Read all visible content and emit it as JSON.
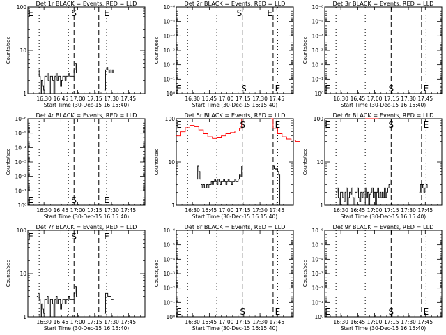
{
  "figure": {
    "x_axis_label": "Start Time (30-Dec-15 16:15:40)",
    "y_axis_label": "Counts/sec",
    "x_ticks": [
      "16:30",
      "16:45",
      "17:00",
      "17:15",
      "17:30",
      "17:45"
    ],
    "x_tick_minutes": [
      14.33,
      29.33,
      44.33,
      59.33,
      74.33,
      89.33
    ],
    "x_range_minutes": [
      0,
      104
    ],
    "colors": {
      "events": "#000000",
      "lld": "#ff0000",
      "axes": "#000000"
    }
  },
  "chart_data": [
    {
      "type": "line",
      "title": "Det 1r BLACK = Events, RED = LLD",
      "ylabel": "Counts/sec",
      "xlabel": "Start Time (30-Dec-15 16:15:40)",
      "yscale": "log",
      "ylim": [
        1,
        100
      ],
      "y_ticks": [
        {
          "v": 1,
          "t": "1"
        },
        {
          "v": 10,
          "t": "10"
        },
        {
          "v": 100,
          "t": "100"
        }
      ],
      "dotted_lines_minutes": [
        10,
        36,
        70
      ],
      "dashed_lines_minutes": [
        41,
        63
      ],
      "markers": [
        {
          "text": "E",
          "x": 2.5,
          "y": 100
        },
        {
          "text": "S",
          "x": 41,
          "y": 100
        },
        {
          "text": "E",
          "x": 70,
          "y": 100
        }
      ],
      "series": [
        {
          "color": "#000000",
          "x": [
            8,
            9,
            10,
            11,
            12,
            13,
            14,
            15,
            16,
            17,
            18,
            19,
            20,
            21,
            22,
            23,
            24,
            25,
            26,
            27,
            28,
            29,
            30,
            31,
            32,
            33,
            34,
            35,
            36,
            37,
            38,
            39,
            40,
            41,
            42,
            43,
            44
          ],
          "y": [
            3,
            3.5,
            2.5,
            1,
            2,
            1.5,
            1.2,
            2.5,
            2.5,
            3,
            2,
            1,
            2.5,
            2.5,
            2,
            1,
            2.5,
            3,
            2,
            2.5,
            2.5,
            1.5,
            2,
            2.5,
            2.5,
            2,
            2.5,
            2.5,
            3,
            2.5,
            2.5,
            2.5,
            2.5,
            3.5,
            5,
            3,
            3
          ]
        },
        {
          "color": "#000000",
          "x": [
            68,
            69,
            70,
            71,
            72,
            73,
            74,
            75,
            76
          ],
          "y": [
            1.2,
            3.5,
            4,
            3.5,
            3,
            3.5,
            3,
            3.5,
            3
          ]
        }
      ]
    },
    {
      "type": "line",
      "title": "Det 2r BLACK = Events, RED = LLD",
      "ylabel": "Counts/sec",
      "xlabel": "Start Time (30-Dec-15 16:15:40)",
      "yscale": "log",
      "ylim": [
        1,
        1e-06
      ],
      "y_ticks": [
        {
          "v": 1,
          "t": "10⁰"
        },
        {
          "v": 0.1,
          "t": "10⁻¹"
        },
        {
          "v": 0.01,
          "t": "10⁻²"
        },
        {
          "v": 0.001,
          "t": "10⁻³"
        },
        {
          "v": 0.0001,
          "t": "10⁻⁴"
        },
        {
          "v": 1e-05,
          "t": "10⁻⁵"
        },
        {
          "v": 1e-06,
          "t": "10⁻⁶"
        }
      ],
      "dotted_lines_minutes": [
        10,
        36,
        90
      ],
      "dashed_lines_minutes": [
        59,
        86
      ],
      "markers": [
        {
          "text": "S",
          "x": 56,
          "y": 1e-06
        },
        {
          "text": "E",
          "x": 83,
          "y": 1e-06
        }
      ],
      "bottom_markers": [
        {
          "text": "E",
          "x": 2.5
        },
        {
          "text": "S",
          "x": 60
        },
        {
          "text": "E",
          "x": 90
        }
      ],
      "series": []
    },
    {
      "type": "line",
      "title": "Det 3r BLACK = Events, RED = LLD",
      "ylabel": "Counts/sec",
      "xlabel": "Start Time (30-Dec-15 16:15:40)",
      "yscale": "log",
      "ylim": [
        1,
        1e-06
      ],
      "y_ticks": [
        {
          "v": 1,
          "t": "10⁰"
        },
        {
          "v": 0.1,
          "t": "10⁻¹"
        },
        {
          "v": 0.01,
          "t": "10⁻²"
        },
        {
          "v": 0.001,
          "t": "10⁻³"
        },
        {
          "v": 0.0001,
          "t": "10⁻⁴"
        },
        {
          "v": 1e-05,
          "t": "10⁻⁵"
        },
        {
          "v": 1e-06,
          "t": "10⁻⁶"
        }
      ],
      "dotted_lines_minutes": [
        10,
        36,
        90
      ],
      "dashed_lines_minutes": [
        59,
        86
      ],
      "markers": [],
      "bottom_markers": [
        {
          "text": "E",
          "x": 2.5
        },
        {
          "text": "S",
          "x": 59
        },
        {
          "text": "E",
          "x": 90
        }
      ],
      "series": []
    },
    {
      "type": "line",
      "title": "Det 4r BLACK = Events, RED = LLD",
      "ylabel": "Counts/sec",
      "xlabel": "Start Time (30-Dec-15 16:15:40)",
      "yscale": "log",
      "ylim": [
        1,
        1e-06
      ],
      "y_ticks": [
        {
          "v": 1,
          "t": "10⁰"
        },
        {
          "v": 0.1,
          "t": "10⁻¹"
        },
        {
          "v": 0.01,
          "t": "10⁻²"
        },
        {
          "v": 0.001,
          "t": "10⁻³"
        },
        {
          "v": 0.0001,
          "t": "10⁻⁴"
        },
        {
          "v": 1e-05,
          "t": "10⁻⁵"
        },
        {
          "v": 1e-06,
          "t": "10⁻⁶"
        }
      ],
      "dotted_lines_minutes": [
        10,
        36,
        70
      ],
      "dashed_lines_minutes": [
        41,
        63
      ],
      "markers": [],
      "bottom_markers": [
        {
          "text": "E",
          "x": 2.5
        },
        {
          "text": "S",
          "x": 41
        },
        {
          "text": "E",
          "x": 70
        }
      ],
      "series": []
    },
    {
      "type": "line",
      "title": "Det 5r BLACK = Events, RED = LLD",
      "ylabel": "Counts/sec",
      "xlabel": "Start Time (30-Dec-15 16:15:40)",
      "yscale": "log",
      "ylim": [
        1,
        100
      ],
      "y_ticks": [
        {
          "v": 1,
          "t": "1"
        },
        {
          "v": 10,
          "t": "10"
        },
        {
          "v": 100,
          "t": "100"
        }
      ],
      "dotted_lines_minutes": [
        10,
        36,
        90
      ],
      "dashed_lines_minutes": [
        59,
        86
      ],
      "markers": [
        {
          "text": "E",
          "x": 2.5,
          "y": 100
        },
        {
          "text": "S",
          "x": 59,
          "y": 100
        },
        {
          "text": "E",
          "x": 90,
          "y": 100
        }
      ],
      "series": [
        {
          "color": "#ff0000",
          "x": [
            0,
            4,
            8,
            12,
            16,
            20,
            24,
            28,
            32,
            36,
            40,
            44,
            48,
            52,
            56,
            58
          ],
          "y": [
            40,
            50,
            62,
            70,
            65,
            55,
            45,
            38,
            35,
            36,
            40,
            45,
            48,
            52,
            60,
            100
          ]
        },
        {
          "color": "#ff0000",
          "x": [
            84,
            86,
            90,
            94,
            98,
            102,
            106,
            110
          ],
          "y": [
            100,
            60,
            45,
            38,
            34,
            32,
            30,
            30
          ]
        },
        {
          "color": "#000000",
          "x": [
            18,
            19,
            20,
            21,
            22,
            23,
            24,
            25,
            26,
            27,
            28,
            29,
            30,
            31,
            32,
            33,
            34,
            35,
            36,
            37,
            38,
            39,
            40,
            41,
            42,
            43,
            44,
            45,
            46,
            47,
            48,
            49,
            50,
            51,
            52,
            53,
            54,
            55,
            56,
            57,
            58
          ],
          "y": [
            4,
            8,
            6,
            4,
            3,
            2.5,
            3,
            2.5,
            2.5,
            3,
            2.5,
            3,
            3,
            3.5,
            3,
            3.5,
            4,
            3.5,
            3,
            4,
            3.5,
            3,
            3.5,
            3.5,
            4,
            3.5,
            3,
            3.5,
            4,
            3.5,
            3.5,
            3,
            3.5,
            3.5,
            4,
            3.5,
            3.5,
            4,
            5,
            4.5,
            8
          ]
        },
        {
          "color": "#000000",
          "x": [
            86,
            87,
            88,
            89,
            90,
            91,
            92,
            93,
            94
          ],
          "y": [
            8,
            7,
            6.5,
            7,
            6,
            5,
            1,
            1,
            1
          ]
        }
      ]
    },
    {
      "type": "line",
      "title": "Det 6r BLACK = Events, RED = LLD",
      "ylabel": "Counts/sec",
      "xlabel": "Start Time (30-Dec-15 16:15:40)",
      "yscale": "log",
      "ylim": [
        1,
        100
      ],
      "y_ticks": [
        {
          "v": 1,
          "t": "1"
        },
        {
          "v": 10,
          "t": "10"
        },
        {
          "v": 100,
          "t": "100"
        }
      ],
      "dotted_lines_minutes": [
        10,
        36,
        90
      ],
      "dashed_lines_minutes": [
        59,
        86
      ],
      "markers": [
        {
          "text": "E",
          "x": 2.5,
          "y": 100
        },
        {
          "text": "S",
          "x": 59,
          "y": 100
        },
        {
          "text": "E",
          "x": 90,
          "y": 100
        }
      ],
      "series": [
        {
          "color": "#ff0000",
          "x": [
            36,
            40,
            44,
            48
          ],
          "y": [
            100,
            100,
            100,
            100
          ]
        },
        {
          "color": "#000000",
          "x": [
            10,
            11,
            12,
            13,
            14,
            15,
            16,
            17,
            18,
            19,
            20,
            21,
            22,
            23,
            24,
            25,
            26,
            27,
            28,
            29,
            30,
            31,
            32,
            33,
            34,
            35,
            36,
            37,
            38,
            39,
            40,
            41,
            42,
            43,
            44,
            45,
            46,
            47,
            48,
            49,
            50,
            51,
            52,
            53,
            54,
            55,
            56,
            57,
            58
          ],
          "y": [
            2,
            2.5,
            1.5,
            1,
            2,
            2,
            1.5,
            1.2,
            2,
            2.5,
            1,
            1.5,
            2,
            1.8,
            2.5,
            1.5,
            1,
            2,
            2,
            2.5,
            1.5,
            1.2,
            2,
            1.5,
            2,
            1,
            2.5,
            1.5,
            2,
            1,
            1.8,
            2,
            2.5,
            1.5,
            2,
            1,
            2,
            2.5,
            1.5,
            2,
            1.5,
            2,
            1.5,
            2.5,
            1.5,
            2,
            2.5,
            3,
            4
          ]
        },
        {
          "color": "#000000",
          "x": [
            84,
            85,
            86,
            87,
            88,
            89,
            90,
            91
          ],
          "y": [
            2,
            3,
            2.5,
            3,
            2,
            2.5,
            3,
            2.5
          ]
        }
      ]
    },
    {
      "type": "line",
      "title": "Det 7r BLACK = Events, RED = LLD",
      "ylabel": "Counts/sec",
      "xlabel": "Start Time (30-Dec-15 16:15:40)",
      "yscale": "log",
      "ylim": [
        1,
        100
      ],
      "y_ticks": [
        {
          "v": 1,
          "t": "1"
        },
        {
          "v": 10,
          "t": "10"
        },
        {
          "v": 100,
          "t": "100"
        }
      ],
      "dotted_lines_minutes": [
        10,
        36,
        70
      ],
      "dashed_lines_minutes": [
        41,
        63
      ],
      "markers": [
        {
          "text": "E",
          "x": 2.5,
          "y": 100
        },
        {
          "text": "S",
          "x": 41,
          "y": 100
        },
        {
          "text": "E",
          "x": 70,
          "y": 100
        }
      ],
      "series": [
        {
          "color": "#000000",
          "x": [
            8,
            9,
            10,
            11,
            12,
            13,
            14,
            15,
            16,
            17,
            18,
            19,
            20,
            21,
            22,
            23,
            24,
            25,
            26,
            27,
            28,
            29,
            30,
            31,
            32,
            33,
            34,
            35,
            36,
            37,
            38,
            39,
            40,
            41,
            42,
            43,
            44
          ],
          "y": [
            3,
            3.5,
            2.5,
            1,
            2,
            1.5,
            1.2,
            2.5,
            2.5,
            3,
            2,
            1,
            2.5,
            2.5,
            2,
            1,
            2.5,
            3,
            2,
            2.5,
            2.5,
            1.5,
            2,
            2.5,
            2.5,
            2,
            2.5,
            2.5,
            3,
            2.5,
            2.5,
            2.5,
            2.5,
            3.5,
            5,
            3,
            3
          ]
        },
        {
          "color": "#000000",
          "x": [
            68,
            69,
            70,
            71,
            72,
            73,
            74,
            75,
            76
          ],
          "y": [
            1.2,
            3.5,
            3.5,
            3,
            3,
            3,
            2.5,
            2.5,
            2.5
          ]
        }
      ]
    },
    {
      "type": "line",
      "title": "Det 8r BLACK = Events, RED = LLD",
      "ylabel": "Counts/sec",
      "xlabel": "Start Time (30-Dec-15 16:15:40)",
      "yscale": "log",
      "ylim": [
        1,
        1e-06
      ],
      "y_ticks": [
        {
          "v": 1,
          "t": "10⁰"
        },
        {
          "v": 0.1,
          "t": "10⁻¹"
        },
        {
          "v": 0.01,
          "t": "10⁻²"
        },
        {
          "v": 0.001,
          "t": "10⁻³"
        },
        {
          "v": 0.0001,
          "t": "10⁻⁴"
        },
        {
          "v": 1e-05,
          "t": "10⁻⁵"
        },
        {
          "v": 1e-06,
          "t": "10⁻⁶"
        }
      ],
      "dotted_lines_minutes": [
        10,
        36,
        90
      ],
      "dashed_lines_minutes": [
        59,
        86
      ],
      "markers": [],
      "bottom_markers": [
        {
          "text": "E",
          "x": 2.5
        },
        {
          "text": "S",
          "x": 59
        },
        {
          "text": "E",
          "x": 90
        }
      ],
      "series": []
    },
    {
      "type": "line",
      "title": "Det 9r BLACK = Events, RED = LLD",
      "ylabel": "Counts/sec",
      "xlabel": "Start Time (30-Dec-15 16:15:40)",
      "yscale": "log",
      "ylim": [
        1,
        1e-06
      ],
      "y_ticks": [
        {
          "v": 1,
          "t": "10⁰"
        },
        {
          "v": 0.1,
          "t": "10⁻¹"
        },
        {
          "v": 0.01,
          "t": "10⁻²"
        },
        {
          "v": 0.001,
          "t": "10⁻³"
        },
        {
          "v": 0.0001,
          "t": "10⁻⁴"
        },
        {
          "v": 1e-05,
          "t": "10⁻⁵"
        },
        {
          "v": 1e-06,
          "t": "10⁻⁶"
        }
      ],
      "dotted_lines_minutes": [
        10,
        36,
        90
      ],
      "dashed_lines_minutes": [
        59,
        86
      ],
      "markers": [],
      "bottom_markers": [
        {
          "text": "E",
          "x": 2.5
        },
        {
          "text": "S",
          "x": 59
        },
        {
          "text": "E",
          "x": 90
        }
      ],
      "series": []
    }
  ]
}
